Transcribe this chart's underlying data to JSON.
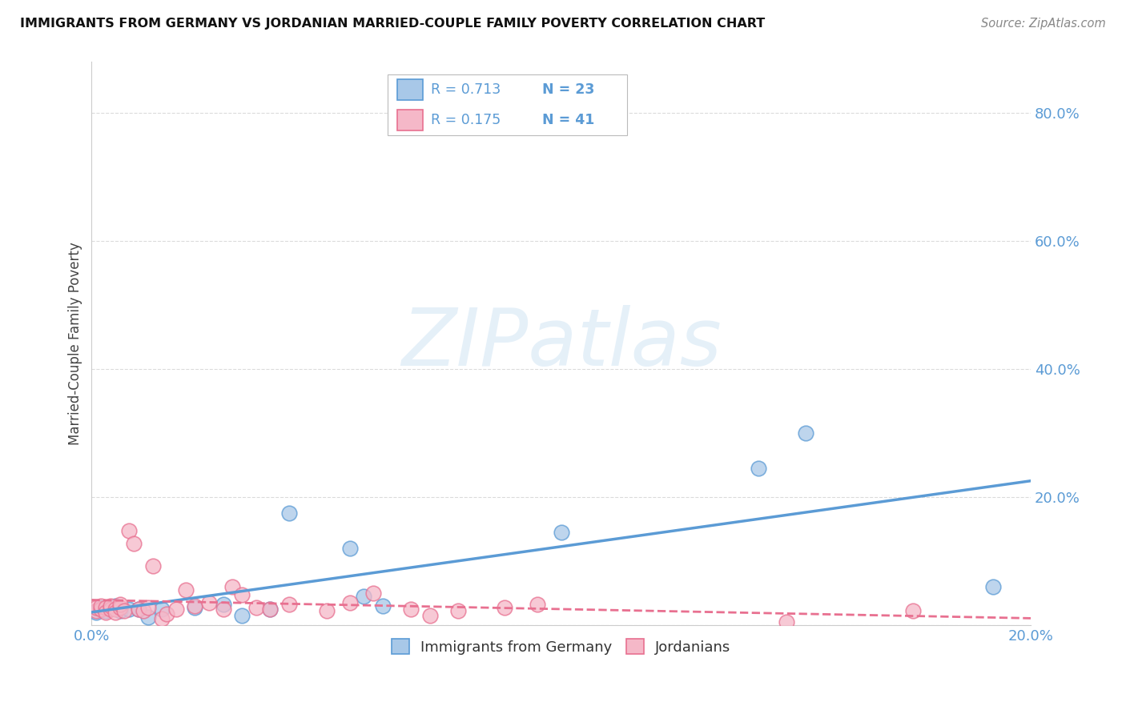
{
  "title": "IMMIGRANTS FROM GERMANY VS JORDANIAN MARRIED-COUPLE FAMILY POVERTY CORRELATION CHART",
  "source": "Source: ZipAtlas.com",
  "ylabel": "Married-Couple Family Poverty",
  "watermark": "ZIPatlas",
  "legend_germany_r": "R = 0.713",
  "legend_germany_n": "N = 23",
  "legend_jordan_r": "R = 0.175",
  "legend_jordan_n": "N = 41",
  "germany_color": "#a8c8e8",
  "jordan_color": "#f5b8c8",
  "germany_line_color": "#5b9bd5",
  "jordan_line_color": "#e87090",
  "germany_scatter_x": [
    0.001,
    0.002,
    0.002,
    0.003,
    0.004,
    0.005,
    0.006,
    0.008,
    0.01,
    0.012,
    0.015,
    0.022,
    0.028,
    0.032,
    0.038,
    0.042,
    0.055,
    0.058,
    0.062,
    0.1,
    0.142,
    0.152,
    0.192
  ],
  "germany_scatter_y": [
    0.02,
    0.025,
    0.028,
    0.022,
    0.028,
    0.03,
    0.022,
    0.025,
    0.025,
    0.012,
    0.025,
    0.028,
    0.032,
    0.015,
    0.025,
    0.175,
    0.12,
    0.045,
    0.03,
    0.145,
    0.245,
    0.3,
    0.06
  ],
  "jordan_scatter_x": [
    0.001,
    0.001,
    0.002,
    0.002,
    0.003,
    0.003,
    0.004,
    0.004,
    0.005,
    0.005,
    0.006,
    0.006,
    0.007,
    0.008,
    0.009,
    0.01,
    0.011,
    0.012,
    0.013,
    0.015,
    0.016,
    0.018,
    0.02,
    0.022,
    0.025,
    0.028,
    0.03,
    0.032,
    0.035,
    0.038,
    0.042,
    0.05,
    0.055,
    0.06,
    0.068,
    0.072,
    0.078,
    0.088,
    0.095,
    0.148,
    0.175
  ],
  "jordan_scatter_y": [
    0.022,
    0.028,
    0.025,
    0.03,
    0.028,
    0.02,
    0.025,
    0.03,
    0.025,
    0.02,
    0.028,
    0.032,
    0.022,
    0.148,
    0.128,
    0.025,
    0.022,
    0.028,
    0.092,
    0.01,
    0.018,
    0.025,
    0.055,
    0.03,
    0.035,
    0.025,
    0.06,
    0.048,
    0.028,
    0.025,
    0.032,
    0.022,
    0.035,
    0.05,
    0.025,
    0.015,
    0.022,
    0.028,
    0.032,
    0.005,
    0.022
  ],
  "xlim": [
    0.0,
    0.2
  ],
  "ylim": [
    0.0,
    0.88
  ],
  "yticks": [
    0.0,
    0.2,
    0.4,
    0.6,
    0.8
  ],
  "ytick_labels": [
    "",
    "20.0%",
    "40.0%",
    "60.0%",
    "80.0%"
  ],
  "xticks": [
    0.0,
    0.05,
    0.1,
    0.15,
    0.2
  ],
  "xtick_labels": [
    "0.0%",
    "",
    "",
    "",
    "20.0%"
  ],
  "background_color": "#ffffff",
  "grid_color": "#d8d8d8"
}
